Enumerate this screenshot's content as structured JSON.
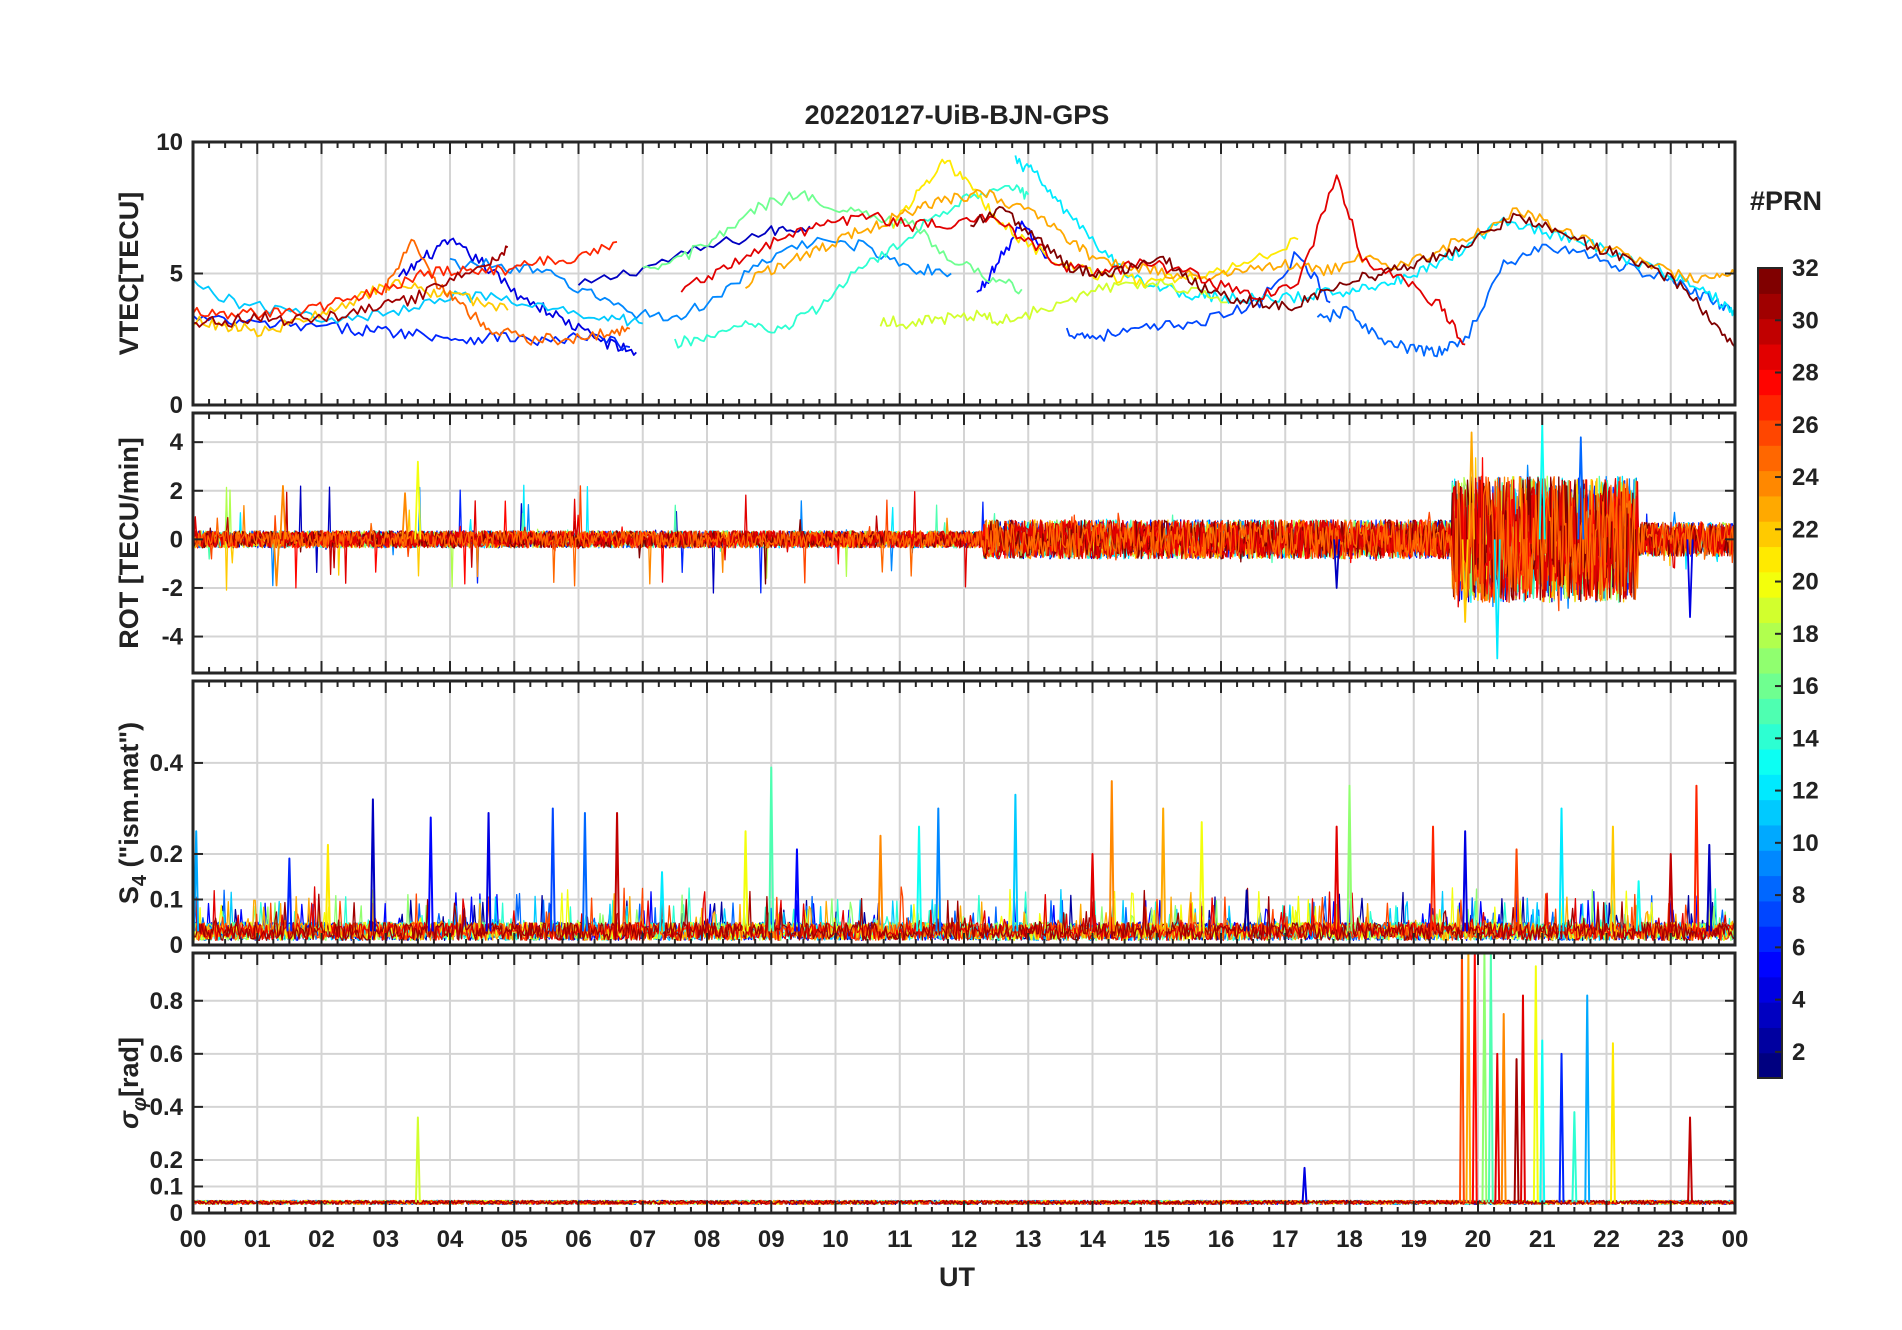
{
  "figure": {
    "title": "20220127-UiB-BJN-GPS",
    "xlabel": "UT",
    "x_tick_labels": [
      "00",
      "01",
      "02",
      "03",
      "04",
      "05",
      "06",
      "07",
      "08",
      "09",
      "10",
      "11",
      "12",
      "13",
      "14",
      "15",
      "16",
      "17",
      "18",
      "19",
      "20",
      "21",
      "22",
      "23",
      "00"
    ],
    "x_range_hours": [
      0,
      24
    ]
  },
  "colorbar": {
    "title": "#PRN",
    "range": [
      1,
      32
    ],
    "tick_values": [
      2,
      4,
      6,
      8,
      10,
      12,
      14,
      16,
      18,
      20,
      22,
      24,
      26,
      28,
      30,
      32
    ],
    "tick_labels": [
      "2",
      "4",
      "6",
      "8",
      "10",
      "12",
      "14",
      "16",
      "18",
      "20",
      "22",
      "24",
      "26",
      "28",
      "30",
      "32"
    ],
    "colormap": "jet"
  },
  "chart_data": [
    {
      "type": "line",
      "panel": "vtec",
      "ylabel": "VTEC[TECU]",
      "ylim": [
        0,
        10
      ],
      "yticks": [
        0,
        5,
        10
      ],
      "ytick_labels": [
        "0",
        "5",
        "10"
      ],
      "grid": true,
      "series": [
        {
          "prn": 3,
          "x": [
            6.0,
            7.0,
            8.0,
            9.0,
            9.6
          ],
          "y": [
            4.5,
            5.2,
            6.0,
            6.6,
            6.8
          ]
        },
        {
          "prn": 4,
          "x": [
            3.2,
            3.6,
            4.0,
            4.5,
            5.0,
            5.5,
            6.0,
            6.5,
            6.9
          ],
          "y": [
            4.8,
            5.6,
            6.2,
            5.4,
            4.3,
            3.6,
            2.9,
            2.3,
            2.0
          ]
        },
        {
          "prn": 5,
          "x": [
            12.2,
            12.5,
            12.9,
            13.3
          ],
          "y": [
            4.2,
            5.3,
            6.9,
            5.6
          ]
        },
        {
          "prn": 6,
          "x": [
            0.0,
            0.8,
            1.6,
            2.4,
            3.0,
            3.6,
            4.2,
            4.8,
            5.5,
            6.2,
            6.8
          ],
          "y": [
            3.3,
            3.1,
            3.0,
            2.9,
            2.8,
            2.7,
            2.5,
            2.6,
            2.4,
            2.6,
            2.2
          ]
        },
        {
          "prn": 7,
          "x": [
            13.6,
            14.0,
            14.6,
            15.2,
            15.9,
            16.6,
            17.2,
            17.7
          ],
          "y": [
            2.8,
            2.6,
            2.8,
            3.0,
            3.3,
            3.9,
            5.8,
            3.9
          ]
        },
        {
          "prn": 8,
          "x": [
            17.5,
            18.0,
            18.5,
            19.0,
            19.4,
            19.8,
            20.4,
            21.0,
            21.6,
            22.2,
            22.8,
            23.3,
            23.7,
            24.0
          ],
          "y": [
            3.2,
            3.6,
            2.4,
            2.1,
            2.0,
            2.5,
            5.3,
            6.0,
            5.8,
            5.3,
            4.9,
            4.4,
            3.9,
            3.6
          ]
        },
        {
          "prn": 9,
          "x": [
            4.0,
            4.8,
            5.5,
            6.2,
            6.9,
            7.6,
            8.3,
            9.0,
            9.8,
            10.5,
            11.2,
            11.8
          ],
          "y": [
            5.4,
            5.3,
            5.0,
            4.2,
            3.5,
            3.3,
            4.4,
            5.6,
            6.3,
            6.0,
            5.2,
            5.0
          ]
        },
        {
          "prn": 11,
          "x": [
            0.0,
            0.8,
            1.6,
            2.4,
            3.2,
            4.0,
            4.8,
            5.6,
            6.4,
            7.0
          ],
          "y": [
            4.6,
            3.8,
            3.5,
            3.2,
            3.6,
            4.2,
            4.0,
            3.6,
            3.4,
            3.1
          ]
        },
        {
          "prn": 12,
          "x": [
            12.8,
            13.1,
            13.5,
            14.0,
            14.5,
            15.0,
            15.5,
            16.0,
            16.6,
            17.2,
            17.8,
            18.3,
            18.8,
            19.3,
            19.8,
            20.4,
            21.0,
            21.6,
            22.2,
            22.8,
            23.3,
            23.8,
            24.0
          ],
          "y": [
            9.3,
            8.8,
            7.6,
            6.2,
            5.1,
            4.5,
            4.2,
            4.1,
            4.0,
            4.1,
            4.3,
            4.5,
            4.8,
            5.3,
            6.0,
            7.1,
            6.6,
            6.3,
            5.6,
            5.2,
            4.6,
            3.9,
            3.5
          ]
        },
        {
          "prn": 14,
          "x": [
            7.5,
            8.0,
            8.6,
            9.1,
            9.7,
            10.3,
            10.9,
            11.5,
            12.1,
            12.7,
            13.0
          ],
          "y": [
            2.3,
            2.6,
            3.0,
            2.8,
            3.6,
            5.1,
            5.9,
            7.1,
            8.0,
            8.3,
            8.0
          ]
        },
        {
          "prn": 16,
          "x": [
            7.0,
            7.6,
            8.2,
            8.8,
            9.4,
            10.0,
            10.6,
            11.2,
            11.8,
            12.4,
            12.9
          ],
          "y": [
            5.0,
            5.6,
            6.4,
            7.5,
            8.0,
            7.6,
            7.1,
            6.8,
            5.6,
            4.8,
            4.4
          ]
        },
        {
          "prn": 19,
          "x": [
            10.7,
            11.2,
            11.7,
            12.2,
            12.6,
            13.2,
            13.8,
            14.4,
            15.0,
            15.6,
            16.1
          ],
          "y": [
            3.2,
            3.1,
            3.3,
            3.4,
            3.2,
            3.6,
            4.2,
            4.6,
            4.7,
            4.3,
            3.9
          ]
        },
        {
          "prn": 21,
          "x": [
            10.9,
            11.3,
            11.7,
            12.1,
            12.5,
            13.0,
            13.6,
            14.2,
            14.8,
            15.4,
            16.0,
            16.6,
            17.2
          ],
          "y": [
            6.9,
            8.1,
            9.4,
            8.2,
            7.1,
            6.1,
            5.3,
            4.9,
            4.7,
            4.9,
            5.1,
            5.6,
            6.3
          ]
        },
        {
          "prn": 22,
          "x": [
            0.0,
            0.5,
            1.0,
            1.6,
            2.2,
            2.8,
            3.3,
            3.8,
            4.3,
            4.9
          ],
          "y": [
            3.2,
            3.0,
            2.8,
            3.1,
            3.6,
            4.3,
            4.7,
            4.2,
            4.0,
            3.6
          ]
        },
        {
          "prn": 23,
          "x": [
            8.6,
            9.1,
            9.6,
            10.1,
            10.6,
            11.0,
            11.4,
            11.9,
            12.4,
            13.0,
            13.5,
            14.0,
            14.6,
            15.2,
            15.8,
            16.4,
            17.0,
            17.6,
            18.2,
            18.8,
            19.4,
            20.0,
            20.6,
            21.2,
            21.8,
            22.4,
            23.0,
            23.6,
            24.0
          ],
          "y": [
            4.6,
            5.3,
            5.8,
            6.3,
            6.8,
            7.2,
            7.6,
            7.9,
            8.0,
            7.4,
            6.6,
            5.6,
            5.3,
            5.0,
            4.9,
            5.2,
            5.4,
            5.1,
            5.6,
            5.3,
            5.9,
            6.6,
            7.4,
            6.8,
            6.1,
            5.6,
            5.0,
            4.8,
            5.0
          ]
        },
        {
          "prn": 25,
          "x": [
            3.0,
            3.4,
            3.8,
            4.2,
            4.6,
            5.2,
            5.8,
            6.4,
            6.8
          ],
          "y": [
            4.4,
            6.2,
            4.6,
            3.7,
            2.9,
            2.5,
            2.5,
            2.7,
            2.9
          ]
        },
        {
          "prn": 27,
          "x": [
            0.0,
            0.6,
            1.2,
            1.8,
            2.4,
            3.0,
            3.6,
            4.2,
            4.8,
            5.4,
            6.0,
            6.6
          ],
          "y": [
            3.6,
            3.4,
            3.5,
            3.6,
            4.0,
            4.4,
            5.0,
            5.2,
            5.1,
            5.4,
            5.6,
            6.2
          ]
        },
        {
          "prn": 29,
          "x": [
            7.6,
            8.2,
            8.8,
            9.4,
            10.0,
            10.6,
            11.2,
            11.8,
            12.4,
            13.0,
            13.6,
            14.2,
            14.8,
            15.4,
            16.0,
            16.6,
            17.2,
            17.8,
            18.2,
            18.8,
            19.4,
            19.8
          ],
          "y": [
            4.4,
            5.1,
            5.9,
            6.5,
            6.9,
            7.2,
            6.8,
            6.9,
            7.1,
            6.3,
            5.2,
            5.0,
            5.4,
            5.1,
            4.5,
            4.2,
            4.6,
            8.7,
            5.6,
            4.8,
            3.8,
            2.3
          ]
        },
        {
          "prn": 31,
          "x": [
            0.0,
            0.5,
            1.0,
            1.6,
            2.2,
            2.8,
            3.4,
            4.0,
            4.6,
            4.9
          ],
          "y": [
            3.2,
            3.1,
            3.4,
            3.2,
            3.4,
            3.7,
            4.0,
            4.8,
            5.3,
            6.0
          ]
        },
        {
          "prn": 32,
          "x": [
            12.1,
            12.6,
            13.1,
            13.6,
            14.1,
            14.6,
            15.1,
            15.6,
            16.1,
            16.6,
            17.1,
            17.6,
            18.1,
            18.6,
            19.1,
            19.6,
            20.1,
            20.6,
            21.1,
            21.6,
            22.1,
            22.6,
            23.1,
            23.6,
            24.0
          ],
          "y": [
            6.9,
            7.4,
            6.4,
            5.3,
            5.0,
            5.2,
            5.6,
            4.6,
            4.1,
            3.9,
            3.7,
            4.3,
            4.8,
            5.0,
            5.5,
            5.9,
            6.5,
            7.2,
            6.7,
            6.2,
            5.8,
            5.4,
            4.6,
            3.4,
            2.2
          ]
        }
      ]
    },
    {
      "type": "line",
      "panel": "rot",
      "ylabel": "ROT [TECU/min]",
      "ylim": [
        -5.5,
        5.2
      ],
      "yticks": [
        -4,
        -2,
        0,
        2,
        4
      ],
      "ytick_labels": [
        "-4",
        "-2",
        "0",
        "2",
        "4"
      ],
      "grid": true,
      "segments": [
        {
          "x_range": [
            0.0,
            12.3
          ],
          "amplitude": 0.35,
          "peak_amplitude": 3.2
        },
        {
          "x_range": [
            12.3,
            19.6
          ],
          "amplitude": 0.8,
          "peak_amplitude": 1.6
        },
        {
          "x_range": [
            19.6,
            22.5
          ],
          "amplitude": 2.6,
          "peak_amplitude": 5.0
        },
        {
          "x_range": [
            22.5,
            24.0
          ],
          "amplitude": 0.7,
          "peak_amplitude": 1.9
        }
      ],
      "peaks": [
        {
          "x": 1.4,
          "y": 2.2,
          "prn": 24
        },
        {
          "x": 3.5,
          "y": 3.2,
          "prn": 20
        },
        {
          "x": 3.3,
          "y": 1.9,
          "prn": 24
        },
        {
          "x": 1.3,
          "y": -1.9,
          "prn": 24
        },
        {
          "x": 17.8,
          "y": -2.0,
          "prn": 3
        },
        {
          "x": 19.9,
          "y": 4.4,
          "prn": 23
        },
        {
          "x": 20.3,
          "y": -4.9,
          "prn": 12
        },
        {
          "x": 21.0,
          "y": 4.7,
          "prn": 13
        },
        {
          "x": 21.6,
          "y": 4.2,
          "prn": 8
        },
        {
          "x": 19.8,
          "y": -3.4,
          "prn": 22
        },
        {
          "x": 23.3,
          "y": -3.2,
          "prn": 4
        }
      ]
    },
    {
      "type": "line",
      "panel": "s4",
      "ylabel_main": "S",
      "ylabel_sub": "4",
      "ylabel_rest": " (\"ism.mat\")",
      "ylim": [
        0,
        0.58
      ],
      "yticks": [
        0,
        0.1,
        0.2,
        0.4
      ],
      "ytick_labels": [
        "0",
        "0.1",
        "0.2",
        "0.4"
      ],
      "grid": true,
      "baseline": 0.03,
      "peaks": [
        {
          "x": 0.05,
          "y": 0.25,
          "prn": 10
        },
        {
          "x": 1.5,
          "y": 0.19,
          "prn": 6
        },
        {
          "x": 2.1,
          "y": 0.22,
          "prn": 21
        },
        {
          "x": 2.8,
          "y": 0.32,
          "prn": 3
        },
        {
          "x": 3.7,
          "y": 0.28,
          "prn": 5
        },
        {
          "x": 4.6,
          "y": 0.29,
          "prn": 4
        },
        {
          "x": 5.6,
          "y": 0.3,
          "prn": 7
        },
        {
          "x": 6.1,
          "y": 0.29,
          "prn": 8
        },
        {
          "x": 6.6,
          "y": 0.29,
          "prn": 30
        },
        {
          "x": 7.3,
          "y": 0.16,
          "prn": 12
        },
        {
          "x": 8.6,
          "y": 0.25,
          "prn": 20
        },
        {
          "x": 9.0,
          "y": 0.39,
          "prn": 15
        },
        {
          "x": 9.4,
          "y": 0.21,
          "prn": 5
        },
        {
          "x": 10.7,
          "y": 0.24,
          "prn": 24
        },
        {
          "x": 11.3,
          "y": 0.26,
          "prn": 13
        },
        {
          "x": 11.6,
          "y": 0.3,
          "prn": 9
        },
        {
          "x": 12.8,
          "y": 0.33,
          "prn": 11
        },
        {
          "x": 14.0,
          "y": 0.2,
          "prn": 29
        },
        {
          "x": 14.3,
          "y": 0.36,
          "prn": 24
        },
        {
          "x": 15.1,
          "y": 0.3,
          "prn": 23
        },
        {
          "x": 15.7,
          "y": 0.27,
          "prn": 20
        },
        {
          "x": 16.4,
          "y": 0.12,
          "prn": 2
        },
        {
          "x": 17.8,
          "y": 0.26,
          "prn": 29
        },
        {
          "x": 18.0,
          "y": 0.35,
          "prn": 17
        },
        {
          "x": 19.3,
          "y": 0.26,
          "prn": 27
        },
        {
          "x": 19.8,
          "y": 0.25,
          "prn": 4
        },
        {
          "x": 20.6,
          "y": 0.21,
          "prn": 26
        },
        {
          "x": 21.3,
          "y": 0.3,
          "prn": 12
        },
        {
          "x": 22.1,
          "y": 0.26,
          "prn": 22
        },
        {
          "x": 22.5,
          "y": 0.14,
          "prn": 13
        },
        {
          "x": 23.0,
          "y": 0.2,
          "prn": 30
        },
        {
          "x": 23.4,
          "y": 0.35,
          "prn": 27
        },
        {
          "x": 23.6,
          "y": 0.22,
          "prn": 3
        }
      ]
    },
    {
      "type": "line",
      "panel": "sigma_phi",
      "ylabel_main": "σ",
      "ylabel_sub": "φ",
      "ylabel_rest": "[rad]",
      "ylim": [
        0,
        0.98
      ],
      "yticks": [
        0,
        0.1,
        0.2,
        0.4,
        0.6,
        0.8
      ],
      "ytick_labels": [
        "0",
        "0.1",
        "0.2",
        "0.4",
        "0.6",
        "0.8"
      ],
      "grid": true,
      "baseline": 0.04,
      "peaks": [
        {
          "x": 3.5,
          "y": 0.36,
          "prn": 19
        },
        {
          "x": 17.3,
          "y": 0.17,
          "prn": 4
        },
        {
          "x": 19.75,
          "y": 0.98,
          "prn": 26
        },
        {
          "x": 19.85,
          "y": 0.98,
          "prn": 23
        },
        {
          "x": 19.95,
          "y": 0.98,
          "prn": 28
        },
        {
          "x": 20.1,
          "y": 0.98,
          "prn": 17
        },
        {
          "x": 20.2,
          "y": 0.98,
          "prn": 15
        },
        {
          "x": 20.3,
          "y": 0.6,
          "prn": 29
        },
        {
          "x": 20.4,
          "y": 0.75,
          "prn": 24
        },
        {
          "x": 20.6,
          "y": 0.58,
          "prn": 31
        },
        {
          "x": 20.7,
          "y": 0.82,
          "prn": 29
        },
        {
          "x": 20.9,
          "y": 0.93,
          "prn": 20
        },
        {
          "x": 21.0,
          "y": 0.65,
          "prn": 13
        },
        {
          "x": 21.3,
          "y": 0.6,
          "prn": 6
        },
        {
          "x": 21.5,
          "y": 0.38,
          "prn": 14
        },
        {
          "x": 21.7,
          "y": 0.82,
          "prn": 10
        },
        {
          "x": 22.1,
          "y": 0.64,
          "prn": 21
        },
        {
          "x": 23.3,
          "y": 0.36,
          "prn": 30
        }
      ]
    }
  ]
}
